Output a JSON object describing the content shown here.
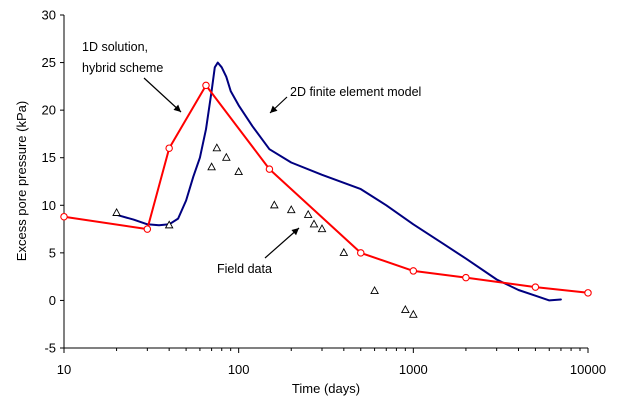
{
  "chart_data": {
    "type": "line",
    "title": "",
    "xlabel": "Time (days)",
    "ylabel": "Excess pore pressure (kPa)",
    "xscale": "log",
    "xlim": [
      10,
      10000
    ],
    "ylim": [
      -5,
      30
    ],
    "xticks": [
      10,
      100,
      1000,
      10000
    ],
    "xtick_labels": [
      "10",
      "100",
      "1000",
      "10000"
    ],
    "yticks": [
      -5,
      0,
      5,
      10,
      15,
      20,
      25,
      30
    ],
    "ytick_labels": [
      "-5",
      "0",
      "5",
      "10",
      "15",
      "20",
      "25",
      "30"
    ],
    "grid": false,
    "legend": "none",
    "series": [
      {
        "key": "hybrid",
        "color": "#ff0000",
        "marker": "open-circle",
        "x": [
          10,
          30,
          40,
          65,
          150,
          500,
          1000,
          2000,
          5000,
          10000
        ],
        "y": [
          8.8,
          7.5,
          16,
          22.6,
          13.8,
          5,
          3.1,
          2.4,
          1.4,
          0.8
        ]
      },
      {
        "key": "fem",
        "color": "#000080",
        "marker": "none",
        "x": [
          20,
          25,
          30,
          35,
          40,
          45,
          50,
          55,
          60,
          65,
          70,
          73,
          76,
          80,
          85,
          90,
          100,
          120,
          150,
          200,
          300,
          500,
          700,
          1000,
          1500,
          2000,
          3000,
          4000,
          5000,
          6000,
          7000
        ],
        "y": [
          9,
          8.5,
          8,
          7.9,
          8.0,
          8.6,
          10.5,
          13,
          15,
          18,
          22,
          24.5,
          25,
          24.5,
          23.5,
          22,
          20.5,
          18.3,
          15.9,
          14.5,
          13.2,
          11.7,
          10.0,
          8.0,
          5.9,
          4.4,
          2.2,
          1.1,
          0.5,
          0.0,
          0.1
        ]
      },
      {
        "key": "field",
        "color": "#000000",
        "marker": "open-triangle",
        "line": false,
        "x": [
          20,
          40,
          70,
          75,
          85,
          100,
          160,
          200,
          250,
          270,
          300,
          400,
          600,
          900,
          1000
        ],
        "y": [
          9.2,
          7.9,
          14,
          16,
          15,
          13.5,
          10,
          9.5,
          9,
          8,
          7.5,
          5,
          1,
          -1,
          -1.5
        ]
      }
    ],
    "annotations": [
      {
        "key": "hybrid_label",
        "lines": [
          "1D solution,",
          "hybrid scheme"
        ]
      },
      {
        "key": "fem_label",
        "lines": [
          "2D finite element model"
        ]
      },
      {
        "key": "field_label",
        "lines": [
          "Field data"
        ]
      }
    ]
  }
}
